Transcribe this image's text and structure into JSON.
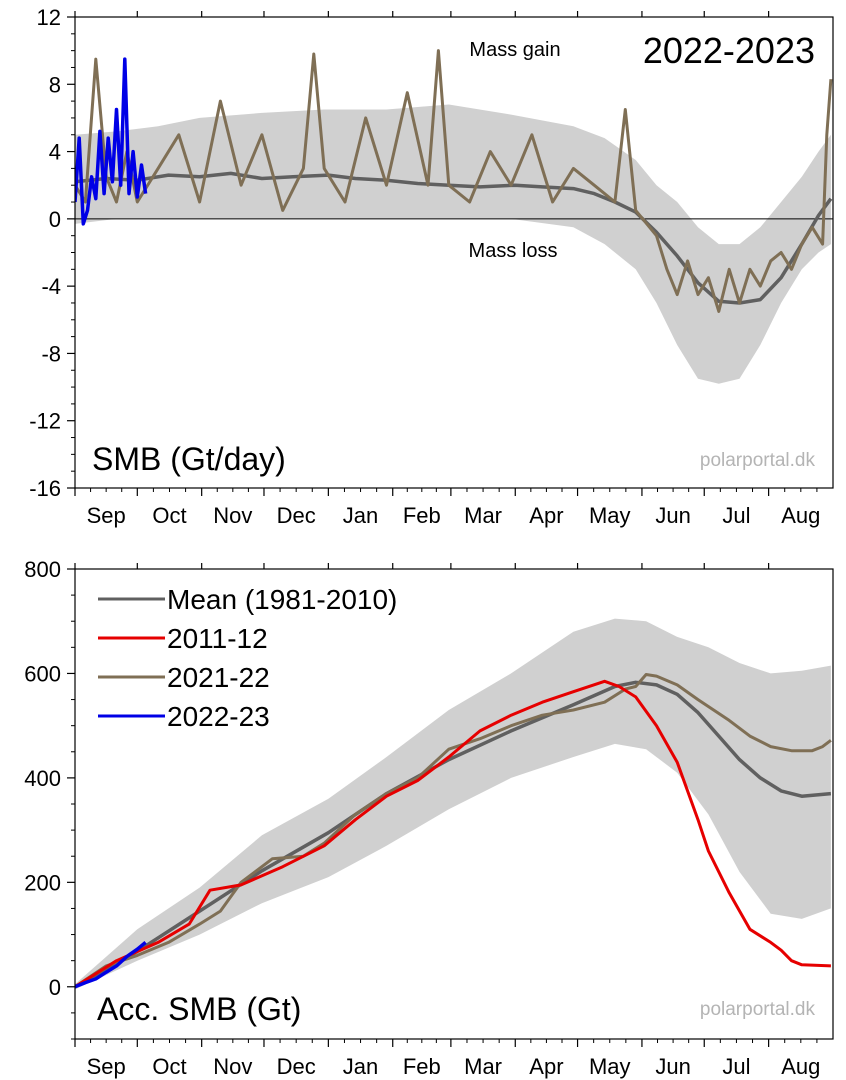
{
  "chart_data": [
    {
      "type": "line",
      "season_label": "2022-2023",
      "panel_label": "SMB (Gt/day)",
      "watermark": "polarportal.dk",
      "annotations": {
        "gain": "Mass gain",
        "loss": "Mass loss"
      },
      "ylim": [
        -16,
        12
      ],
      "yticks": [
        -16,
        -12,
        -8,
        -4,
        0,
        4,
        8,
        12
      ],
      "ytick_labels": [
        "-16",
        "-12",
        "-8",
        "-4",
        "0",
        "4",
        "8",
        "12"
      ],
      "zero_line": true,
      "x_unit": "day of season",
      "xlim": [
        0,
        365
      ],
      "months": [
        "Sep",
        "Oct",
        "Nov",
        "Dec",
        "Jan",
        "Feb",
        "Mar",
        "Apr",
        "May",
        "Jun",
        "Jul",
        "Aug"
      ],
      "month_starts": [
        0,
        30,
        61,
        91,
        122,
        153,
        181,
        212,
        242,
        273,
        303,
        334
      ],
      "colors": {
        "band": "#d0d0d0",
        "mean": "#606060",
        "season_2021_22": "#7f6f55",
        "season_2022_23": "#0000e6"
      },
      "band": {
        "x": [
          0,
          20,
          40,
          60,
          90,
          120,
          150,
          180,
          210,
          240,
          255,
          270,
          280,
          290,
          300,
          310,
          320,
          330,
          340,
          350,
          358,
          364
        ],
        "upper": [
          5,
          5.2,
          5.5,
          6,
          6.3,
          6.5,
          6.5,
          6.8,
          6.2,
          5.5,
          4.8,
          3.5,
          2,
          1,
          -0.5,
          -1.5,
          -1.5,
          -0.5,
          1,
          2.5,
          4,
          5
        ],
        "lower": [
          -0.3,
          0,
          0,
          0,
          0,
          0,
          0,
          0,
          0,
          -0.5,
          -1.5,
          -3,
          -5,
          -7.5,
          -9.5,
          -9.8,
          -9.5,
          -7.5,
          -5,
          -3,
          -2,
          -1.5
        ]
      },
      "series": [
        {
          "key": "mean",
          "x": [
            0,
            15,
            30,
            45,
            60,
            75,
            90,
            105,
            122,
            135,
            150,
            165,
            180,
            195,
            212,
            225,
            240,
            250,
            260,
            270,
            280,
            290,
            300,
            310,
            320,
            330,
            340,
            350,
            358,
            364
          ],
          "values": [
            2.2,
            2.4,
            2.3,
            2.6,
            2.5,
            2.7,
            2.4,
            2.5,
            2.6,
            2.4,
            2.3,
            2.1,
            2.0,
            1.9,
            2.0,
            1.9,
            1.8,
            1.5,
            1.0,
            0.4,
            -0.8,
            -2.2,
            -3.8,
            -4.9,
            -5.0,
            -4.8,
            -3.5,
            -1.5,
            0.2,
            1.2
          ]
        },
        {
          "key": "2021-22",
          "x": [
            0,
            5,
            10,
            15,
            20,
            25,
            30,
            40,
            50,
            60,
            70,
            80,
            90,
            100,
            110,
            115,
            120,
            130,
            140,
            150,
            160,
            170,
            175,
            180,
            190,
            200,
            210,
            220,
            230,
            240,
            250,
            260,
            265,
            270,
            280,
            285,
            290,
            295,
            300,
            305,
            310,
            315,
            320,
            325,
            330,
            335,
            340,
            345,
            350,
            355,
            360,
            362,
            364
          ],
          "values": [
            2,
            1,
            9.5,
            2.5,
            1,
            4,
            1,
            3,
            5,
            1,
            7,
            2,
            5,
            0.5,
            3,
            9.8,
            3,
            1,
            6,
            2,
            7.5,
            2,
            10,
            2,
            1,
            4,
            2,
            5,
            1,
            3,
            2,
            1,
            6.5,
            0.5,
            -1,
            -3,
            -4.5,
            -2.5,
            -4.5,
            -3.5,
            -5.5,
            -3,
            -5,
            -3,
            -4,
            -2.5,
            -2,
            -3,
            -1.5,
            -0.5,
            -1.5,
            5,
            8.3
          ]
        },
        {
          "key": "2022-23",
          "x": [
            0,
            2,
            4,
            6,
            8,
            10,
            12,
            14,
            16,
            18,
            20,
            22,
            24,
            26,
            28,
            30,
            32,
            34
          ],
          "values": [
            1,
            4.8,
            -0.3,
            0.5,
            2.5,
            1.2,
            5.2,
            1.5,
            4.8,
            2.2,
            6.5,
            2,
            9.5,
            1.5,
            4,
            1.3,
            3.2,
            1.5
          ]
        }
      ]
    },
    {
      "type": "line",
      "panel_label": "Acc. SMB (Gt)",
      "watermark": "polarportal.dk",
      "ylim": [
        -100,
        800
      ],
      "yticks": [
        0,
        200,
        400,
        600,
        800
      ],
      "ytick_labels": [
        "0",
        "200",
        "400",
        "600",
        "800"
      ],
      "x_unit": "day of season",
      "xlim": [
        0,
        365
      ],
      "months": [
        "Sep",
        "Oct",
        "Nov",
        "Dec",
        "Jan",
        "Feb",
        "Mar",
        "Apr",
        "May",
        "Jun",
        "Jul",
        "Aug"
      ],
      "month_starts": [
        0,
        30,
        61,
        91,
        122,
        153,
        181,
        212,
        242,
        273,
        303,
        334
      ],
      "legend": {
        "placement": "top-left",
        "entries": [
          "Mean (1981-2010)",
          "2011-12",
          "2021-22",
          "2022-23"
        ]
      },
      "colors": {
        "band": "#d0d0d0",
        "mean": "#606060",
        "season_2011_12": "#e60000",
        "season_2021_22": "#7f6f55",
        "season_2022_23": "#0000e6"
      },
      "band": {
        "x": [
          0,
          30,
          60,
          90,
          122,
          150,
          180,
          210,
          240,
          260,
          275,
          290,
          305,
          320,
          335,
          350,
          364
        ],
        "upper": [
          5,
          110,
          190,
          290,
          360,
          440,
          530,
          600,
          680,
          705,
          700,
          670,
          650,
          620,
          600,
          605,
          615
        ],
        "lower": [
          -5,
          50,
          100,
          160,
          210,
          270,
          340,
          400,
          440,
          465,
          455,
          410,
          330,
          220,
          140,
          130,
          150
        ]
      },
      "series": [
        {
          "name": "Mean (1981-2010)",
          "key": "mean",
          "x": [
            0,
            30,
            60,
            90,
            122,
            150,
            180,
            210,
            240,
            260,
            270,
            280,
            290,
            300,
            310,
            320,
            330,
            340,
            350,
            364
          ],
          "values": [
            0,
            68,
            145,
            222,
            295,
            370,
            435,
            490,
            540,
            575,
            583,
            578,
            560,
            525,
            480,
            435,
            400,
            375,
            365,
            370
          ]
        },
        {
          "name": "2011-12",
          "key": "2011-12",
          "x": [
            0,
            20,
            40,
            55,
            65,
            80,
            100,
            120,
            135,
            150,
            165,
            180,
            195,
            210,
            225,
            240,
            255,
            262,
            270,
            280,
            290,
            300,
            305,
            315,
            325,
            335,
            340,
            345,
            350,
            364
          ],
          "values": [
            0,
            50,
            85,
            120,
            185,
            195,
            230,
            270,
            320,
            365,
            395,
            440,
            490,
            520,
            545,
            565,
            585,
            575,
            555,
            500,
            430,
            320,
            260,
            180,
            110,
            85,
            70,
            50,
            42,
            40
          ]
        },
        {
          "name": "2021-22",
          "key": "2021-22",
          "x": [
            0,
            15,
            30,
            45,
            60,
            70,
            80,
            95,
            110,
            120,
            135,
            150,
            165,
            180,
            195,
            210,
            225,
            240,
            255,
            265,
            270,
            275,
            280,
            290,
            300,
            315,
            325,
            335,
            345,
            355,
            360,
            364
          ],
          "values": [
            0,
            40,
            60,
            85,
            120,
            145,
            200,
            245,
            250,
            275,
            330,
            370,
            400,
            455,
            475,
            500,
            520,
            530,
            545,
            570,
            575,
            598,
            595,
            578,
            550,
            510,
            480,
            460,
            452,
            452,
            460,
            472
          ]
        },
        {
          "name": "2022-23",
          "key": "2022-23",
          "x": [
            0,
            5,
            10,
            15,
            20,
            25,
            30,
            34
          ],
          "values": [
            0,
            8,
            15,
            28,
            40,
            58,
            72,
            85
          ]
        }
      ]
    }
  ]
}
